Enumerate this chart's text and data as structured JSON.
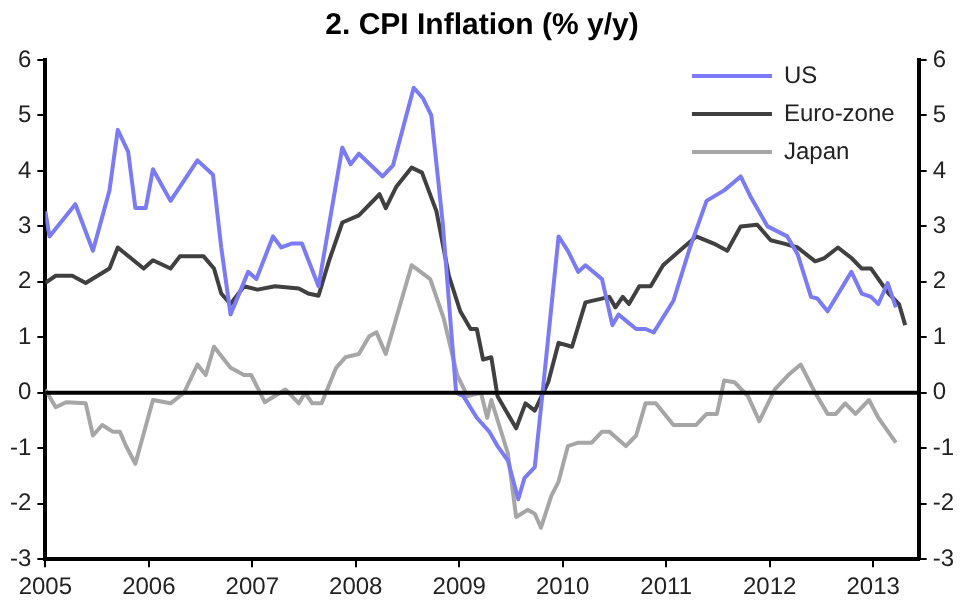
{
  "chart_data": {
    "type": "line",
    "title": "2. CPI Inflation (% y/y)",
    "xlim": [
      2005,
      2013.44
    ],
    "xticks": [
      2005,
      2006,
      2007,
      2008,
      2009,
      2010,
      2011,
      2012,
      2013
    ],
    "ylim": [
      -3,
      6
    ],
    "yticks": [
      -3,
      -2,
      -1,
      0,
      1,
      2,
      3,
      4,
      5,
      6
    ],
    "y2lim": [
      -3,
      6
    ],
    "y2ticks": [
      -3,
      -2,
      -1,
      0,
      1,
      2,
      3,
      4,
      5,
      6
    ],
    "grid": false,
    "legend": "top right",
    "marker": "none",
    "line_style": "solid",
    "ref_lines": [
      {
        "axis": "y",
        "value": 0,
        "color": "#000000"
      }
    ],
    "series": [
      {
        "name": "US",
        "color": "#7b7bf5",
        "x": [
          2005.0,
          2005.04,
          2005.29,
          2005.46,
          2005.62,
          2005.7,
          2005.8,
          2005.87,
          2005.97,
          2006.04,
          2006.21,
          2006.47,
          2006.62,
          2006.7,
          2006.79,
          2006.96,
          2007.04,
          2007.2,
          2007.28,
          2007.38,
          2007.48,
          2007.64,
          2007.87,
          2007.95,
          2008.03,
          2008.26,
          2008.36,
          2008.56,
          2008.65,
          2008.73,
          2008.84,
          2008.97,
          2009.04,
          2009.17,
          2009.29,
          2009.37,
          2009.47,
          2009.57,
          2009.63,
          2009.73,
          2009.83,
          2009.96,
          2010.05,
          2010.15,
          2010.22,
          2010.38,
          2010.48,
          2010.54,
          2010.71,
          2010.8,
          2010.88,
          2011.07,
          2011.23,
          2011.39,
          2011.56,
          2011.72,
          2011.82,
          2011.98,
          2012.17,
          2012.27,
          2012.4,
          2012.46,
          2012.56,
          2012.79,
          2012.89,
          2012.98,
          2013.05,
          2013.14,
          2013.22
        ],
        "values": [
          3.27,
          2.82,
          3.4,
          2.56,
          3.65,
          4.74,
          4.35,
          3.33,
          3.33,
          4.03,
          3.46,
          4.19,
          3.93,
          2.62,
          1.41,
          2.18,
          2.05,
          2.82,
          2.62,
          2.69,
          2.69,
          1.92,
          4.42,
          4.12,
          4.31,
          3.9,
          4.1,
          5.5,
          5.31,
          5.0,
          3.07,
          0,
          -0.06,
          -0.45,
          -0.7,
          -0.96,
          -1.22,
          -1.92,
          -1.54,
          -1.34,
          0.45,
          2.82,
          2.56,
          2.18,
          2.3,
          2.05,
          1.22,
          1.41,
          1.15,
          1.15,
          1.09,
          1.66,
          2.62,
          3.46,
          3.65,
          3.9,
          3.52,
          3.0,
          2.82,
          2.5,
          1.73,
          1.7,
          1.47,
          2.18,
          1.79,
          1.73,
          1.6,
          1.98,
          1.54
        ]
      },
      {
        "name": "Euro-zone",
        "color": "#404040",
        "x": [
          2005.0,
          2005.1,
          2005.26,
          2005.39,
          2005.62,
          2005.7,
          2005.95,
          2006.04,
          2006.21,
          2006.3,
          2006.53,
          2006.63,
          2006.7,
          2006.79,
          2006.92,
          2007.05,
          2007.22,
          2007.45,
          2007.54,
          2007.64,
          2007.74,
          2007.87,
          2008.03,
          2008.23,
          2008.29,
          2008.39,
          2008.54,
          2008.64,
          2008.78,
          2008.9,
          2009.01,
          2009.11,
          2009.17,
          2009.23,
          2009.31,
          2009.37,
          2009.55,
          2009.64,
          2009.73,
          2009.86,
          2009.96,
          2010.09,
          2010.22,
          2010.45,
          2010.51,
          2010.58,
          2010.64,
          2010.74,
          2010.85,
          2010.97,
          2011.13,
          2011.29,
          2011.46,
          2011.59,
          2011.72,
          2011.88,
          2012.01,
          2012.14,
          2012.27,
          2012.44,
          2012.53,
          2012.66,
          2012.79,
          2012.89,
          2012.98,
          2013.15,
          2013.25,
          2013.31
        ],
        "values": [
          1.98,
          2.11,
          2.11,
          1.98,
          2.24,
          2.62,
          2.24,
          2.39,
          2.24,
          2.46,
          2.46,
          2.24,
          1.79,
          1.6,
          1.92,
          1.86,
          1.92,
          1.88,
          1.79,
          1.75,
          2.37,
          3.07,
          3.2,
          3.58,
          3.33,
          3.71,
          4.06,
          3.97,
          3.27,
          2.11,
          1.47,
          1.15,
          1.15,
          0.6,
          0.64,
          -0.06,
          -0.64,
          -0.19,
          -0.32,
          0.19,
          0.9,
          0.83,
          1.63,
          1.73,
          1.54,
          1.73,
          1.6,
          1.92,
          1.92,
          2.3,
          2.56,
          2.82,
          2.69,
          2.56,
          3.0,
          3.03,
          2.75,
          2.69,
          2.62,
          2.37,
          2.43,
          2.62,
          2.43,
          2.24,
          2.24,
          1.79,
          1.6,
          1.22
        ]
      },
      {
        "name": "Japan",
        "color": "#a6a6a6",
        "x": [
          2005.0,
          2005.1,
          2005.2,
          2005.39,
          2005.46,
          2005.55,
          2005.65,
          2005.72,
          2005.78,
          2005.87,
          2006.04,
          2006.21,
          2006.34,
          2006.47,
          2006.55,
          2006.63,
          2006.79,
          2006.92,
          2006.99,
          2007.12,
          2007.32,
          2007.45,
          2007.51,
          2007.58,
          2007.67,
          2007.81,
          2007.9,
          2008.03,
          2008.13,
          2008.2,
          2008.29,
          2008.39,
          2008.54,
          2008.72,
          2008.85,
          2008.98,
          2009.08,
          2009.21,
          2009.27,
          2009.31,
          2009.47,
          2009.55,
          2009.66,
          2009.73,
          2009.79,
          2009.89,
          2009.96,
          2010.05,
          2010.15,
          2010.28,
          2010.38,
          2010.45,
          2010.61,
          2010.71,
          2010.8,
          2010.9,
          2011.07,
          2011.29,
          2011.39,
          2011.49,
          2011.56,
          2011.66,
          2011.79,
          2011.9,
          2012.05,
          2012.18,
          2012.3,
          2012.44,
          2012.56,
          2012.64,
          2012.73,
          2012.83,
          2012.96,
          2013.05,
          2013.22
        ],
        "values": [
          0.06,
          -0.26,
          -0.17,
          -0.19,
          -0.77,
          -0.58,
          -0.7,
          -0.7,
          -0.96,
          -1.28,
          -0.13,
          -0.19,
          0,
          0.51,
          0.32,
          0.83,
          0.45,
          0.32,
          0.32,
          -0.17,
          0.06,
          -0.19,
          0,
          -0.19,
          -0.19,
          0.45,
          0.64,
          0.7,
          1.02,
          1.09,
          0.7,
          1.34,
          2.3,
          2.05,
          1.34,
          0.32,
          -0.06,
          0,
          -0.45,
          -0.13,
          -1.09,
          -2.24,
          -2.11,
          -2.18,
          -2.43,
          -1.86,
          -1.6,
          -0.96,
          -0.9,
          -0.9,
          -0.7,
          -0.7,
          -0.96,
          -0.77,
          -0.19,
          -0.19,
          -0.58,
          -0.58,
          -0.38,
          -0.38,
          0.22,
          0.19,
          -0.06,
          -0.51,
          0.06,
          0.32,
          0.51,
          0,
          -0.38,
          -0.38,
          -0.19,
          -0.38,
          -0.13,
          -0.45,
          -0.9
        ]
      }
    ]
  }
}
